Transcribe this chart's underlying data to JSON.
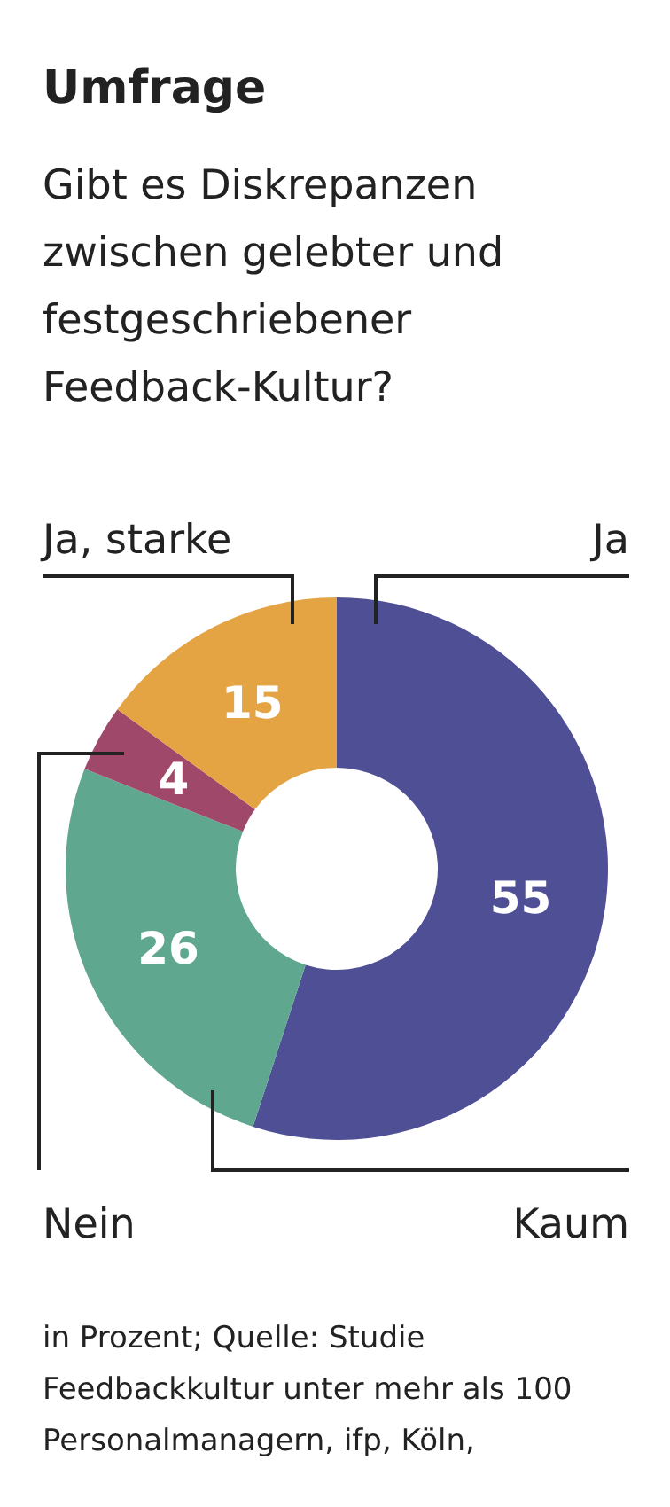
{
  "chart_data": {
    "type": "donut",
    "title": "Umfrage",
    "subtitle": "Gibt es Diskrepanzen zwischen gelebter und festgeschriebener Feedback-Kultur?",
    "categories": [
      "Ja",
      "Kaum",
      "Nein",
      "Ja, starke"
    ],
    "values": [
      55,
      26,
      4,
      15
    ],
    "colors": [
      "#4f4f96",
      "#5fa88f",
      "#a0486a",
      "#e4a444"
    ],
    "data_labels": true,
    "annotations": [
      "in Prozent; Quelle: Studie Feedbackkultur unter mehr als 100 Personalmanagern, ifp, Köln,"
    ]
  }
}
